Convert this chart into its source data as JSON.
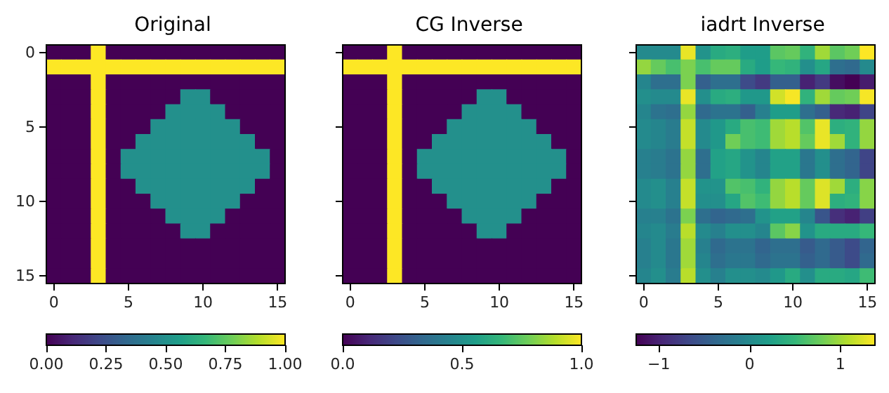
{
  "chart_data": [
    {
      "type": "heatmap",
      "title": "Original",
      "categories": [
        "0",
        null,
        null,
        null,
        null,
        "5",
        null,
        null,
        null,
        null,
        "10",
        null,
        null,
        null,
        null,
        "15"
      ],
      "y_categories": [
        "0",
        null,
        null,
        null,
        null,
        "5",
        null,
        null,
        null,
        null,
        "10",
        null,
        null,
        null,
        null,
        "15"
      ],
      "cells": [
        [
          0,
          0,
          0,
          1,
          0,
          0,
          0,
          0,
          0,
          0,
          0,
          0,
          0,
          0,
          0,
          0
        ],
        [
          1,
          1,
          1,
          1,
          1,
          1,
          1,
          1,
          1,
          1,
          1,
          1,
          1,
          1,
          1,
          1
        ],
        [
          0,
          0,
          0,
          1,
          0,
          0,
          0,
          0,
          0,
          0,
          0,
          0,
          0,
          0,
          0,
          0
        ],
        [
          0,
          0,
          0,
          1,
          0,
          0,
          0,
          0,
          0,
          0.5,
          0.5,
          0,
          0,
          0,
          0,
          0
        ],
        [
          0,
          0,
          0,
          1,
          0,
          0,
          0,
          0,
          0.5,
          0.5,
          0.5,
          0.5,
          0,
          0,
          0,
          0
        ],
        [
          0,
          0,
          0,
          1,
          0,
          0,
          0,
          0.5,
          0.5,
          0.5,
          0.5,
          0.5,
          0.5,
          0,
          0,
          0
        ],
        [
          0,
          0,
          0,
          1,
          0,
          0,
          0.5,
          0.5,
          0.5,
          0.5,
          0.5,
          0.5,
          0.5,
          0.5,
          0,
          0
        ],
        [
          0,
          0,
          0,
          1,
          0,
          0.5,
          0.5,
          0.5,
          0.5,
          0.5,
          0.5,
          0.5,
          0.5,
          0.5,
          0.5,
          0
        ],
        [
          0,
          0,
          0,
          1,
          0,
          0.5,
          0.5,
          0.5,
          0.5,
          0.5,
          0.5,
          0.5,
          0.5,
          0.5,
          0.5,
          0
        ],
        [
          0,
          0,
          0,
          1,
          0,
          0,
          0.5,
          0.5,
          0.5,
          0.5,
          0.5,
          0.5,
          0.5,
          0.5,
          0,
          0
        ],
        [
          0,
          0,
          0,
          1,
          0,
          0,
          0,
          0.5,
          0.5,
          0.5,
          0.5,
          0.5,
          0.5,
          0,
          0,
          0
        ],
        [
          0,
          0,
          0,
          1,
          0,
          0,
          0,
          0,
          0.5,
          0.5,
          0.5,
          0.5,
          0,
          0,
          0,
          0
        ],
        [
          0,
          0,
          0,
          1,
          0,
          0,
          0,
          0,
          0,
          0.5,
          0.5,
          0,
          0,
          0,
          0,
          0
        ],
        [
          0,
          0,
          0,
          1,
          0,
          0,
          0,
          0,
          0,
          0,
          0,
          0,
          0,
          0,
          0,
          0
        ],
        [
          0,
          0,
          0,
          1,
          0,
          0,
          0,
          0,
          0,
          0,
          0,
          0,
          0,
          0,
          0,
          0
        ],
        [
          0,
          0,
          0,
          1,
          0,
          0,
          0,
          0,
          0,
          0,
          0,
          0,
          0,
          0,
          0,
          0
        ]
      ],
      "clim": [
        0,
        1
      ],
      "cticks": [
        {
          "value": 0,
          "label": "0.00"
        },
        {
          "value": 0.25,
          "label": "0.25"
        },
        {
          "value": 0.5,
          "label": "0.50"
        },
        {
          "value": 0.75,
          "label": "0.75"
        },
        {
          "value": 1,
          "label": "1.00"
        }
      ]
    },
    {
      "type": "heatmap",
      "title": "CG Inverse",
      "categories": [
        "0",
        null,
        null,
        null,
        null,
        "5",
        null,
        null,
        null,
        null,
        "10",
        null,
        null,
        null,
        null,
        "15"
      ],
      "y_categories": [
        "0",
        null,
        null,
        null,
        null,
        "5",
        null,
        null,
        null,
        null,
        "10",
        null,
        null,
        null,
        null,
        "15"
      ],
      "tick_labels": "x",
      "cells": [
        [
          0,
          0,
          0,
          1,
          0,
          0,
          0,
          0,
          0,
          0,
          0,
          0,
          0,
          0,
          0,
          0
        ],
        [
          1,
          1,
          1,
          1,
          1,
          1,
          1,
          1,
          1,
          1,
          1,
          1,
          1,
          1,
          1,
          1
        ],
        [
          0,
          0,
          0,
          1,
          0,
          0,
          0,
          0,
          0,
          0,
          0,
          0,
          0,
          0,
          0,
          0
        ],
        [
          0,
          0,
          0,
          1,
          0,
          0,
          0,
          0,
          0,
          0.5,
          0.5,
          0,
          0,
          0,
          0,
          0
        ],
        [
          0,
          0,
          0,
          1,
          0,
          0,
          0,
          0,
          0.5,
          0.5,
          0.5,
          0.5,
          0,
          0,
          0,
          0
        ],
        [
          0,
          0,
          0,
          1,
          0,
          0,
          0,
          0.5,
          0.5,
          0.5,
          0.5,
          0.5,
          0.5,
          0,
          0,
          0
        ],
        [
          0,
          0,
          0,
          1,
          0,
          0,
          0.5,
          0.5,
          0.5,
          0.5,
          0.5,
          0.5,
          0.5,
          0.5,
          0,
          0
        ],
        [
          0,
          0,
          0,
          1,
          0,
          0.5,
          0.5,
          0.5,
          0.5,
          0.5,
          0.5,
          0.5,
          0.5,
          0.5,
          0.5,
          0
        ],
        [
          0,
          0,
          0,
          1,
          0,
          0.5,
          0.5,
          0.5,
          0.5,
          0.5,
          0.5,
          0.5,
          0.5,
          0.5,
          0.5,
          0
        ],
        [
          0,
          0,
          0,
          1,
          0,
          0,
          0.5,
          0.5,
          0.5,
          0.5,
          0.5,
          0.5,
          0.5,
          0.5,
          0,
          0
        ],
        [
          0,
          0,
          0,
          1,
          0,
          0,
          0,
          0.5,
          0.5,
          0.5,
          0.5,
          0.5,
          0.5,
          0,
          0,
          0
        ],
        [
          0,
          0,
          0,
          1,
          0,
          0,
          0,
          0,
          0.5,
          0.5,
          0.5,
          0.5,
          0,
          0,
          0,
          0
        ],
        [
          0,
          0,
          0,
          1,
          0,
          0,
          0,
          0,
          0,
          0.5,
          0.5,
          0,
          0,
          0,
          0,
          0
        ],
        [
          0,
          0,
          0,
          1,
          0,
          0,
          0,
          0,
          0,
          0,
          0,
          0,
          0,
          0,
          0,
          0
        ],
        [
          0,
          0,
          0,
          1,
          0,
          0,
          0,
          0,
          0,
          0,
          0,
          0,
          0,
          0,
          0,
          0
        ],
        [
          0,
          0,
          0,
          1,
          0,
          0,
          0,
          0,
          0,
          0,
          0,
          0,
          0,
          0,
          0,
          0
        ]
      ],
      "clim": [
        0,
        1
      ],
      "cticks": [
        {
          "value": 0,
          "label": "0.0"
        },
        {
          "value": 0.5,
          "label": "0.5"
        },
        {
          "value": 1,
          "label": "1.0"
        }
      ]
    },
    {
      "type": "heatmap",
      "title": "iadrt Inverse",
      "categories": [
        "0",
        null,
        null,
        null,
        null,
        "5",
        null,
        null,
        null,
        null,
        "10",
        null,
        null,
        null,
        null,
        "15"
      ],
      "y_categories": [
        "0",
        null,
        null,
        null,
        null,
        "5",
        null,
        null,
        null,
        null,
        "10",
        null,
        null,
        null,
        null,
        "15"
      ],
      "tick_labels": "x",
      "cells": [
        [
          0.0,
          0.0,
          0.0,
          1.3,
          0.1,
          0.35,
          0.4,
          0.2,
          0.2,
          0.7,
          0.75,
          0.45,
          1.0,
          0.7,
          0.8,
          1.38
        ],
        [
          0.95,
          0.75,
          0.6,
          0.85,
          0.6,
          0.75,
          0.75,
          0.35,
          0.2,
          0.5,
          0.45,
          0.05,
          0.3,
          -0.3,
          -0.35,
          0.0
        ],
        [
          -0.05,
          -0.3,
          -0.3,
          0.85,
          -0.45,
          -0.3,
          -0.3,
          -0.65,
          -0.8,
          -0.45,
          -0.45,
          -1.0,
          -0.8,
          -1.15,
          -1.25,
          -1.05
        ],
        [
          0.05,
          0.0,
          0.0,
          1.3,
          0.05,
          0.35,
          0.4,
          0.15,
          0.15,
          1.2,
          1.35,
          0.45,
          1.0,
          0.75,
          0.8,
          1.35
        ],
        [
          -0.05,
          -0.25,
          -0.3,
          0.95,
          -0.35,
          -0.25,
          -0.25,
          -0.45,
          -0.1,
          0.2,
          0.2,
          -0.3,
          -0.45,
          -0.95,
          -1.0,
          -0.7
        ],
        [
          0.0,
          -0.05,
          -0.15,
          1.15,
          0.0,
          0.15,
          0.35,
          0.6,
          0.55,
          1.0,
          1.1,
          0.65,
          1.3,
          0.4,
          0.45,
          0.95
        ],
        [
          0.0,
          -0.05,
          -0.15,
          1.15,
          0.0,
          0.15,
          0.8,
          0.6,
          0.55,
          1.0,
          1.1,
          0.75,
          1.3,
          1.0,
          0.45,
          0.95
        ],
        [
          -0.1,
          -0.15,
          -0.25,
          0.95,
          -0.3,
          0.25,
          0.3,
          0.1,
          -0.05,
          0.25,
          0.25,
          -0.2,
          0.05,
          -0.3,
          -0.4,
          -0.7
        ],
        [
          -0.1,
          -0.15,
          -0.25,
          0.95,
          -0.3,
          0.25,
          0.3,
          0.1,
          -0.05,
          0.25,
          0.25,
          -0.2,
          0.05,
          -0.3,
          -0.4,
          -0.7
        ],
        [
          0.0,
          0.05,
          -0.1,
          1.15,
          0.1,
          0.1,
          0.65,
          0.6,
          0.45,
          0.95,
          1.1,
          0.75,
          1.25,
          1.0,
          0.4,
          0.9
        ],
        [
          0.0,
          0.05,
          -0.1,
          1.15,
          0.05,
          0.05,
          0.3,
          0.65,
          0.55,
          0.95,
          1.1,
          0.75,
          1.25,
          0.4,
          0.45,
          0.9
        ],
        [
          -0.1,
          -0.1,
          -0.25,
          0.85,
          -0.3,
          -0.4,
          -0.35,
          -0.3,
          0.1,
          0.25,
          0.25,
          -0.05,
          -0.55,
          -0.9,
          -1.0,
          -0.75
        ],
        [
          -0.05,
          0.0,
          -0.15,
          1.1,
          0.0,
          -0.1,
          0.05,
          0.05,
          -0.05,
          0.7,
          0.9,
          0.1,
          0.35,
          0.35,
          0.35,
          0.5
        ],
        [
          -0.1,
          0.0,
          -0.2,
          1.0,
          -0.1,
          -0.35,
          -0.25,
          -0.25,
          -0.4,
          -0.3,
          -0.3,
          -0.5,
          -0.35,
          -0.5,
          -0.65,
          -0.4
        ],
        [
          -0.1,
          0.0,
          -0.2,
          1.0,
          -0.05,
          -0.3,
          -0.2,
          -0.2,
          -0.35,
          -0.25,
          -0.25,
          -0.45,
          -0.35,
          -0.5,
          -0.65,
          -0.35
        ],
        [
          -0.05,
          0.05,
          -0.15,
          1.1,
          0.05,
          -0.1,
          0.05,
          0.05,
          0.0,
          0.15,
          0.35,
          0.05,
          0.35,
          0.35,
          0.3,
          0.55
        ]
      ],
      "clim": [
        -1.25,
        1.38
      ],
      "cticks": [
        {
          "value": -1,
          "label": "−1"
        },
        0,
        1
      ]
    }
  ]
}
